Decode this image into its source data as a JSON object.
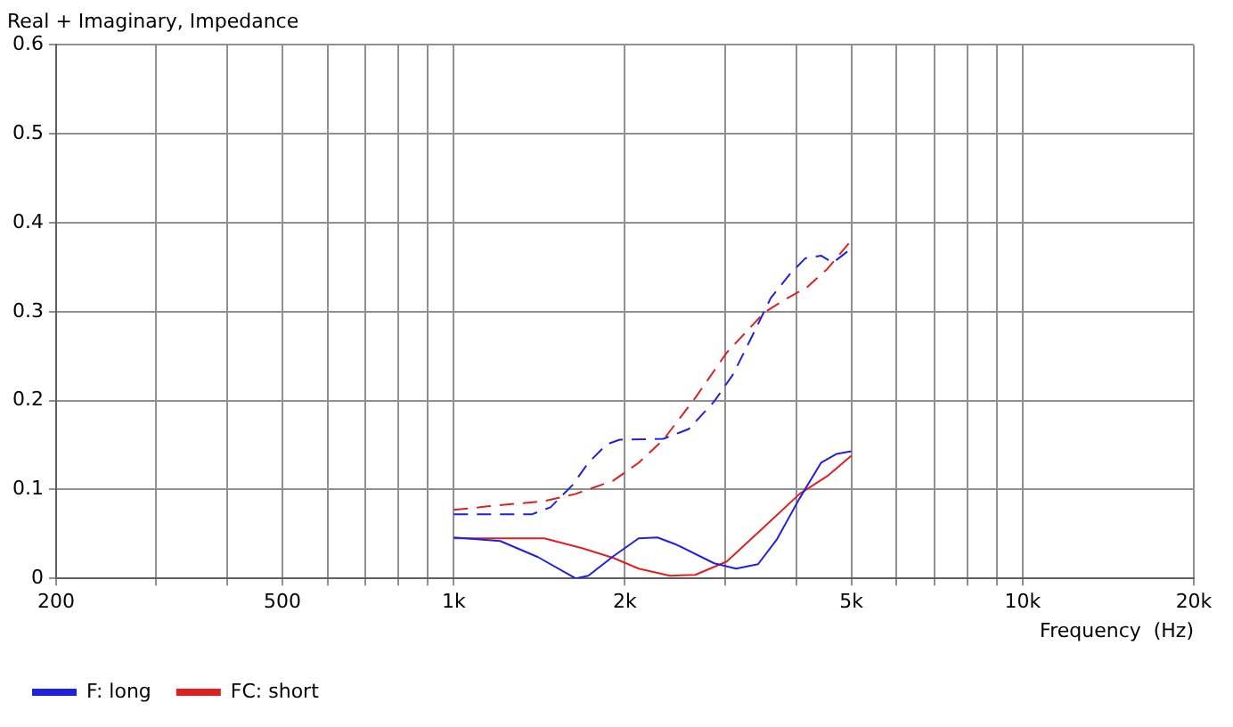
{
  "chart_data": {
    "type": "line",
    "title": "Real + Imaginary, Impedance",
    "xlabel": "Frequency  (Hz)",
    "xlim": [
      200,
      20000
    ],
    "xticks": [
      {
        "value": 200,
        "label": "200"
      },
      {
        "value": 300,
        "label": null
      },
      {
        "value": 400,
        "label": null
      },
      {
        "value": 500,
        "label": "500"
      },
      {
        "value": 600,
        "label": null
      },
      {
        "value": 700,
        "label": null
      },
      {
        "value": 800,
        "label": null
      },
      {
        "value": 900,
        "label": null
      },
      {
        "value": 1000,
        "label": "1k"
      },
      {
        "value": 2000,
        "label": "2k"
      },
      {
        "value": 3000,
        "label": null
      },
      {
        "value": 4000,
        "label": null
      },
      {
        "value": 5000,
        "label": "5k"
      },
      {
        "value": 6000,
        "label": null
      },
      {
        "value": 7000,
        "label": null
      },
      {
        "value": 8000,
        "label": null
      },
      {
        "value": 9000,
        "label": null
      },
      {
        "value": 10000,
        "label": "10k"
      },
      {
        "value": 20000,
        "label": "20k"
      }
    ],
    "ylim": [
      0,
      0.6
    ],
    "yticks": [
      0,
      0.1,
      0.2,
      0.3,
      0.4,
      0.5,
      0.6
    ],
    "log": "x",
    "grid": true,
    "legend": "bottom",
    "marker": "none",
    "series": [
      {
        "name": "F: long",
        "color": "#2020e0",
        "line_style": "solid",
        "x": [
          1000,
          1207,
          1406,
          1638,
          1724,
          1909,
          2114,
          2281,
          2462,
          2870,
          3136,
          3428,
          3700,
          4055,
          4423,
          4713,
          5000
        ],
        "values": [
          0.046,
          0.042,
          0.024,
          0,
          0.003,
          0.025,
          0.045,
          0.046,
          0.038,
          0.017,
          0.011,
          0.016,
          0.044,
          0.09,
          0.13,
          0.14,
          0.143
        ]
      },
      {
        "name": "FC: short",
        "color": "#e02020",
        "line_style": "solid",
        "x": [
          1000,
          1443,
          1681,
          1909,
          2114,
          2400,
          2658,
          3020,
          3516,
          4055,
          4536,
          5000
        ],
        "values": [
          0.045,
          0.045,
          0.034,
          0.023,
          0.011,
          0.003,
          0.004,
          0.019,
          0.058,
          0.095,
          0.115,
          0.138
        ]
      },
      {
        "color": "#2020e0",
        "line_style": "dashed",
        "x": [
          1000,
          1371,
          1480,
          1618,
          1724,
          1860,
          1958,
          2337,
          2590,
          2870,
          3095,
          3344,
          3606,
          3896,
          4150,
          4423,
          4640,
          5000
        ],
        "values": [
          0.072,
          0.072,
          0.08,
          0.105,
          0.13,
          0.151,
          0.156,
          0.157,
          0.168,
          0.199,
          0.229,
          0.272,
          0.315,
          0.342,
          0.36,
          0.363,
          0.355,
          0.371
        ]
      },
      {
        "color": "#e02020",
        "line_style": "dashed",
        "x": [
          1000,
          1147,
          1443,
          1638,
          1909,
          2114,
          2337,
          2658,
          3020,
          3516,
          3786,
          4191,
          4536,
          5000
        ],
        "values": [
          0.077,
          0.081,
          0.087,
          0.095,
          0.11,
          0.13,
          0.156,
          0.203,
          0.254,
          0.299,
          0.312,
          0.328,
          0.348,
          0.38
        ]
      }
    ]
  }
}
